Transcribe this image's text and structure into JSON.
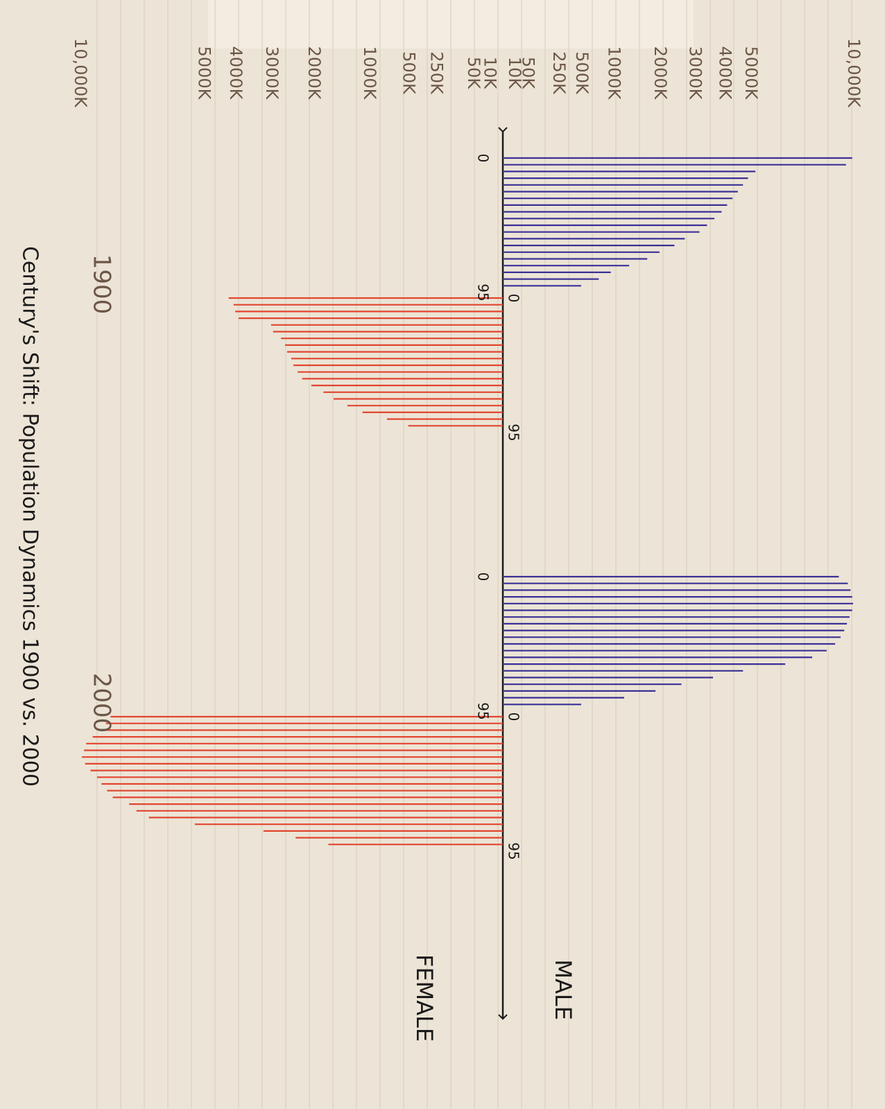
{
  "title": "Century's Shift: Population Dynamics 1900 vs. 2000",
  "colors": {
    "male": "#3a2f96",
    "female": "#e2452e",
    "ink": "#1a1a1a",
    "pencil": "#6b5647",
    "paper": "#ece4d6"
  },
  "chart_data": {
    "type": "bar",
    "orientation": "horizontal-population-pyramid",
    "value_ticks": [
      {
        "label": "10,000K",
        "value": 10000
      },
      {
        "label": "5000K",
        "value": 5000
      },
      {
        "label": "4000K",
        "value": 4000
      },
      {
        "label": "3000K",
        "value": 3000
      },
      {
        "label": "2000K",
        "value": 2000
      },
      {
        "label": "1000K",
        "value": 1000
      },
      {
        "label": "500K",
        "value": 500
      },
      {
        "label": "250K",
        "value": 250
      },
      {
        "label": "50K",
        "value": 50
      },
      {
        "label": "10K",
        "value": 10
      }
    ],
    "legend": {
      "male": "MALE",
      "female": "FEMALE"
    },
    "groups": [
      {
        "name": "1900",
        "age_start_label": "0",
        "age_end_label": "95",
        "male": [
          9950,
          9600,
          5200,
          4900,
          4700,
          4500,
          4300,
          4100,
          3900,
          3650,
          3400,
          3150,
          2700,
          2400,
          2000,
          1700,
          1300,
          950,
          750,
          500
        ],
        "female": [
          4200,
          4050,
          4000,
          3900,
          3000,
          2950,
          2750,
          2650,
          2600,
          2500,
          2450,
          2350,
          2250,
          2050,
          1800,
          1600,
          1350,
          1100,
          750,
          500
        ]
      },
      {
        "name": "2000",
        "age_start_label": "0",
        "age_end_label": "95",
        "male": [
          9200,
          9700,
          9850,
          9950,
          10000,
          9950,
          9800,
          9650,
          9500,
          9300,
          9000,
          8550,
          7800,
          6500,
          4700,
          3600,
          2600,
          1900,
          1200,
          500
        ],
        "female": [
          8600,
          8800,
          9100,
          9400,
          9700,
          9800,
          9900,
          9750,
          9500,
          9200,
          9000,
          8750,
          8500,
          7800,
          7500,
          7000,
          5300,
          3200,
          2400,
          1700
        ]
      }
    ]
  }
}
